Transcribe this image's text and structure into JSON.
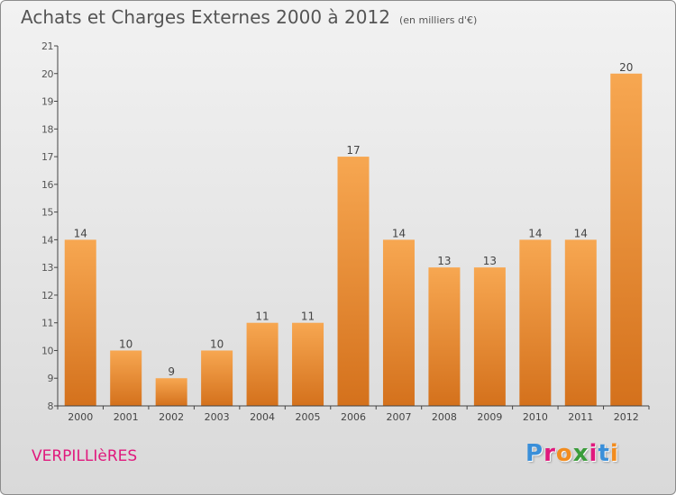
{
  "title": "Achats et Charges Externes 2000 à 2012",
  "unit": "(en milliers d'€)",
  "commune": "VERPILLIèRES",
  "logo": {
    "text": "Proxiti",
    "letter_colors": [
      "#3a8fd9",
      "#e0197d",
      "#f28c1e",
      "#3a9c3a",
      "#e0197d",
      "#3a8fd9",
      "#f28c1e"
    ]
  },
  "colors": {
    "bar_top": "#f7a751",
    "bar_bottom": "#d4711c",
    "commune_text": "#e0197d"
  },
  "chart_data": {
    "type": "bar",
    "categories": [
      "2000",
      "2001",
      "2002",
      "2003",
      "2004",
      "2005",
      "2006",
      "2007",
      "2008",
      "2009",
      "2010",
      "2011",
      "2012"
    ],
    "values": [
      14,
      10,
      9,
      10,
      11,
      11,
      17,
      14,
      13,
      13,
      14,
      14,
      20
    ],
    "ylim": [
      8,
      21
    ],
    "yticks": [
      8,
      9,
      10,
      11,
      12,
      13,
      14,
      15,
      16,
      17,
      18,
      19,
      20,
      21
    ],
    "grid": false,
    "legend": "none"
  }
}
